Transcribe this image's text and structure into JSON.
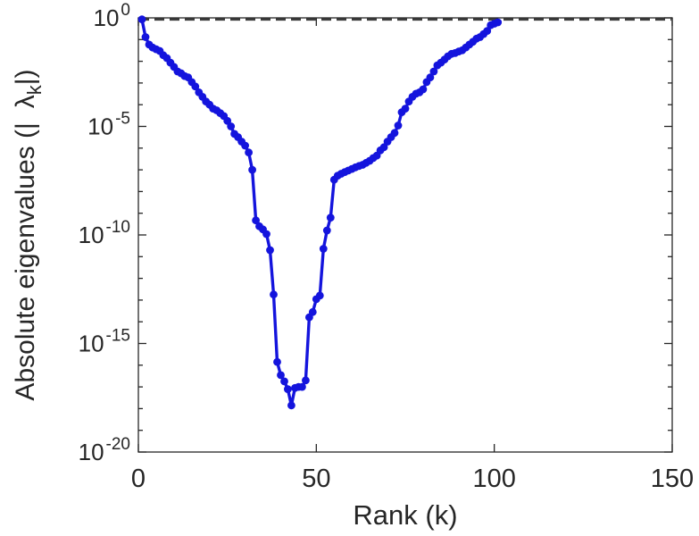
{
  "chart_data": {
    "type": "line",
    "title": "",
    "xlabel": "Rank (k)",
    "ylabel": {
      "prefix": "Absolute eigenvalues (|",
      "symbol": "λ",
      "subscript": "k",
      "suffix": "|)"
    },
    "x_axis": {
      "min": 0,
      "max": 150,
      "tick_values": [
        0,
        50,
        100,
        150
      ],
      "tick_labels": [
        "0",
        "50",
        "100",
        "150"
      ]
    },
    "y_axis": {
      "scale": "log",
      "min_decade": -20,
      "max_decade": 0,
      "major_tick_exponents": [
        "0",
        "-5",
        "-10",
        "-15",
        "-20"
      ],
      "major_tick_decades": [
        0,
        -5,
        -10,
        -15,
        -20
      ],
      "minor_ticks_every_decade": true
    },
    "grid": false,
    "legend": "none",
    "reference_line": {
      "y": 1,
      "style": "dashed",
      "color": "#3d3d3d"
    },
    "series": [
      {
        "name": "absolute-eigenvalues",
        "color": "#1414dd",
        "marker": "circle",
        "x": [
          1,
          2,
          3,
          4,
          5,
          6,
          7,
          8,
          9,
          10,
          11,
          12,
          13,
          14,
          15,
          16,
          17,
          18,
          19,
          20,
          21,
          22,
          23,
          24,
          25,
          26,
          27,
          28,
          29,
          30,
          31,
          32,
          33,
          34,
          35,
          36,
          37,
          38,
          39,
          40,
          41,
          42,
          43,
          44,
          45,
          46,
          47,
          48,
          49,
          50,
          51,
          52,
          53,
          54,
          55,
          56,
          57,
          58,
          59,
          60,
          61,
          62,
          63,
          64,
          65,
          66,
          67,
          68,
          69,
          70,
          71,
          72,
          73,
          74,
          75,
          76,
          77,
          78,
          79,
          80,
          81,
          82,
          83,
          84,
          85,
          86,
          87,
          88,
          89,
          90,
          91,
          92,
          93,
          94,
          95,
          96,
          97,
          98,
          99,
          100,
          101
        ],
        "y": [
          0.85,
          0.13,
          0.059,
          0.043,
          0.036,
          0.03,
          0.019,
          0.014,
          0.0087,
          0.0055,
          0.0034,
          0.0028,
          0.0021,
          0.0018,
          0.0011,
          0.00069,
          0.00037,
          0.00023,
          0.00014,
          0.0001,
          6.6e-05,
          5.5e-05,
          4.1e-05,
          3e-05,
          1.8e-05,
          1e-05,
          4.5e-06,
          3.2e-06,
          2e-06,
          1.3e-06,
          6.3e-07,
          1e-07,
          4.7e-10,
          2.5e-10,
          1.8e-10,
          1.1e-10,
          2e-11,
          1.8e-13,
          1.4e-16,
          3.5e-17,
          1.8e-17,
          7.9e-18,
          1.4e-18,
          8.9e-18,
          1e-17,
          1e-17,
          2e-17,
          1.6e-14,
          2.8e-14,
          1.1e-13,
          1.6e-13,
          2.3e-11,
          1.6e-10,
          6.3e-10,
          3.5e-08,
          5.4e-08,
          6.6e-08,
          7.9e-08,
          9.3e-08,
          1.1e-07,
          1.3e-07,
          1.5e-07,
          1.7e-07,
          2.1e-07,
          2.6e-07,
          3.5e-07,
          4.5e-07,
          7.9e-07,
          1.1e-06,
          2e-06,
          3.2e-06,
          5e-06,
          1.1e-05,
          4.5e-05,
          6.6e-05,
          0.00014,
          0.00023,
          0.00032,
          0.00037,
          0.00051,
          0.0011,
          0.0018,
          0.0034,
          0.0065,
          0.0087,
          0.012,
          0.017,
          0.022,
          0.024,
          0.028,
          0.032,
          0.043,
          0.059,
          0.079,
          0.11,
          0.13,
          0.18,
          0.25,
          0.46,
          0.54,
          0.62
        ]
      }
    ]
  },
  "styles": {
    "background": "#ffffff",
    "axis_color": "#262626",
    "text_color": "#262626",
    "series_color": "#1414dd",
    "reference_line_color": "#3d3d3d"
  }
}
